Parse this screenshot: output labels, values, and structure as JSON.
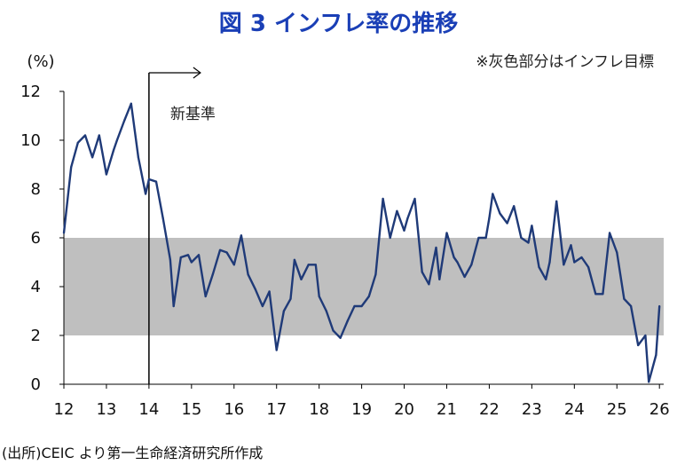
{
  "chart_data": {
    "type": "line",
    "title": "図 3  インフレ率の推移",
    "ylabel": "(%)",
    "note": "※灰色部分はインフレ目標",
    "annotation": "新基準",
    "source": "(出所)CEIC より第一生命経済研究所作成",
    "ylim": [
      0,
      12
    ],
    "xlim": [
      2012,
      2026.1
    ],
    "yticks": [
      "0",
      "2",
      "4",
      "6",
      "8",
      "10",
      "12"
    ],
    "xticks": [
      "12",
      "13",
      "14",
      "15",
      "16",
      "17",
      "18",
      "19",
      "20",
      "21",
      "22",
      "23",
      "24",
      "25",
      "26"
    ],
    "target_band": [
      2,
      6
    ],
    "new_standard_x": 2014.0,
    "series": [
      {
        "name": "インフレ率",
        "color": "#1f3a78",
        "x": [
          2012.0,
          2012.17,
          2012.33,
          2012.5,
          2012.67,
          2012.83,
          2013.0,
          2013.17,
          2013.25,
          2013.42,
          2013.58,
          2013.75,
          2013.92,
          2014.0,
          2014.17,
          2014.33,
          2014.5,
          2014.58,
          2014.75,
          2014.92,
          2015.0,
          2015.17,
          2015.33,
          2015.5,
          2015.67,
          2015.83,
          2016.0,
          2016.17,
          2016.33,
          2016.5,
          2016.67,
          2016.83,
          2017.0,
          2017.17,
          2017.33,
          2017.42,
          2017.58,
          2017.75,
          2017.92,
          2018.0,
          2018.17,
          2018.33,
          2018.5,
          2018.67,
          2018.83,
          2019.0,
          2019.17,
          2019.33,
          2019.5,
          2019.67,
          2019.83,
          2020.0,
          2020.08,
          2020.25,
          2020.42,
          2020.58,
          2020.75,
          2020.83,
          2021.0,
          2021.17,
          2021.25,
          2021.42,
          2021.58,
          2021.75,
          2021.92,
          2022.0,
          2022.08,
          2022.25,
          2022.42,
          2022.58,
          2022.75,
          2022.92,
          2023.0,
          2023.17,
          2023.33,
          2023.42,
          2023.58,
          2023.75,
          2023.92,
          2024.0,
          2024.17,
          2024.33,
          2024.5,
          2024.67,
          2024.83,
          2025.0,
          2025.17,
          2025.33,
          2025.5,
          2025.67,
          2025.75,
          2025.92,
          2026.0
        ],
        "values": [
          6.2,
          8.9,
          9.9,
          10.2,
          9.3,
          10.2,
          8.6,
          9.6,
          10.0,
          10.8,
          11.5,
          9.3,
          7.8,
          8.4,
          8.3,
          6.8,
          5.1,
          3.2,
          5.2,
          5.3,
          5.0,
          5.3,
          3.6,
          4.5,
          5.5,
          5.4,
          4.9,
          6.1,
          4.5,
          3.9,
          3.2,
          3.8,
          1.4,
          3.0,
          3.5,
          5.1,
          4.3,
          4.9,
          4.9,
          3.6,
          3.0,
          2.2,
          1.9,
          2.6,
          3.2,
          3.2,
          3.6,
          4.5,
          7.6,
          6.0,
          7.1,
          6.3,
          6.8,
          7.6,
          4.6,
          4.1,
          5.6,
          4.3,
          6.2,
          5.2,
          5.0,
          4.4,
          4.9,
          6.0,
          6.0,
          6.8,
          7.8,
          7.0,
          6.6,
          7.3,
          6.0,
          5.8,
          6.5,
          4.8,
          4.3,
          5.0,
          7.5,
          4.9,
          5.7,
          5.0,
          5.2,
          4.8,
          3.7,
          3.7,
          6.2,
          5.4,
          3.5,
          3.2,
          1.6,
          2.0,
          0.1,
          1.2,
          3.2
        ]
      }
    ]
  }
}
